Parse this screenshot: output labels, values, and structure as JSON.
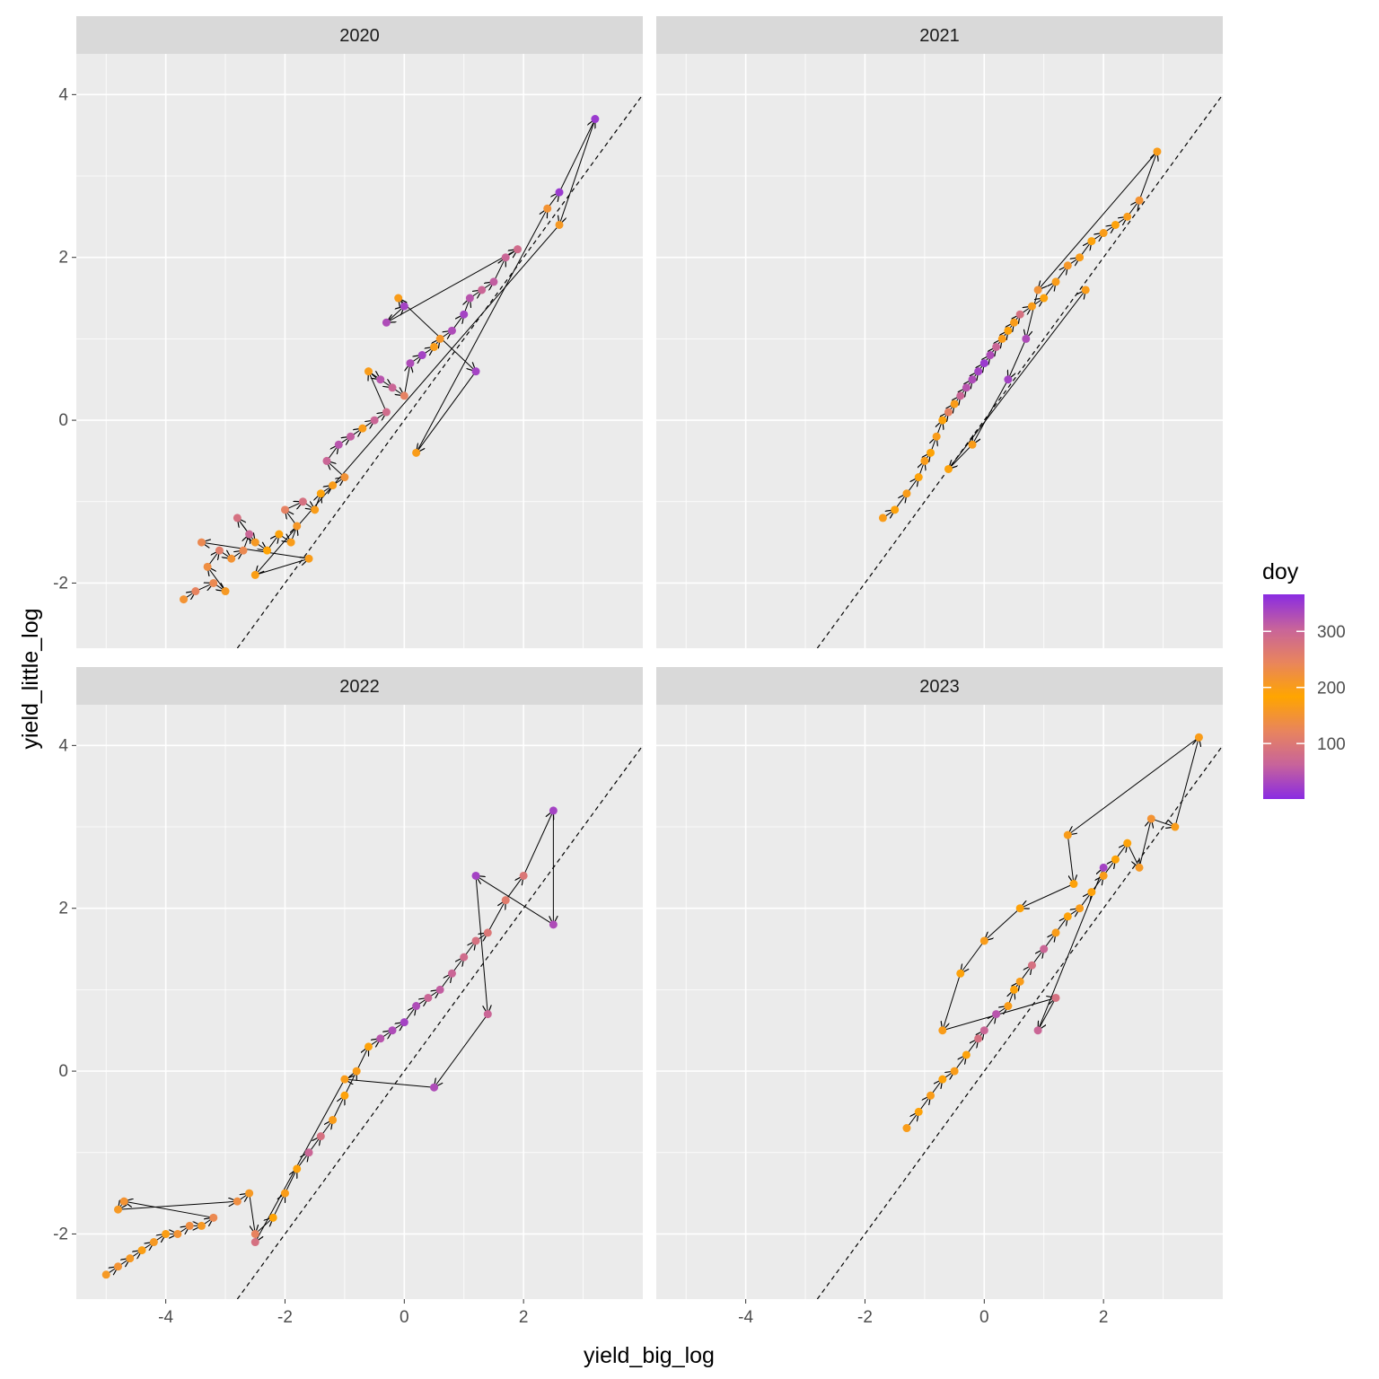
{
  "chart_data": {
    "type": "scatter",
    "xlabel": "yield_big_log",
    "ylabel": "yield_little_log",
    "xlim": [
      -5.5,
      4.0
    ],
    "ylim": [
      -2.8,
      4.5
    ],
    "x_ticks": [
      -4,
      -2,
      0,
      2
    ],
    "y_ticks": [
      -2,
      0,
      2,
      4
    ],
    "grid": true,
    "reference_line": {
      "slope": 1,
      "intercept": 0,
      "style": "dashed",
      "color": "#000000"
    },
    "color_scale": {
      "title": "doy",
      "min": 1,
      "max": 366,
      "breaks": [
        100,
        200,
        300
      ],
      "colors": [
        "#8a2be2",
        "#c8649a",
        "#e8845e",
        "#ffa500",
        "#e8845e",
        "#c8649a",
        "#8a2be2"
      ]
    },
    "legend_position": "right",
    "panels": [
      {
        "label": "2020",
        "points": [
          [
            -3.7,
            -2.2,
            150
          ],
          [
            -3.5,
            -2.1,
            120
          ],
          [
            -3.2,
            -2.0,
            130
          ],
          [
            -3.0,
            -2.1,
            160
          ],
          [
            -3.3,
            -1.8,
            140
          ],
          [
            -3.1,
            -1.6,
            110
          ],
          [
            -2.9,
            -1.7,
            150
          ],
          [
            -2.7,
            -1.6,
            130
          ],
          [
            -2.6,
            -1.4,
            300
          ],
          [
            -2.8,
            -1.2,
            280
          ],
          [
            -2.5,
            -1.5,
            160
          ],
          [
            -2.3,
            -1.6,
            180
          ],
          [
            -2.1,
            -1.4,
            190
          ],
          [
            -1.9,
            -1.5,
            200
          ],
          [
            -1.8,
            -1.3,
            210
          ],
          [
            -2.0,
            -1.1,
            250
          ],
          [
            -1.7,
            -1.0,
            280
          ],
          [
            -1.5,
            -1.1,
            200
          ],
          [
            -1.4,
            -0.9,
            190
          ],
          [
            -1.2,
            -0.8,
            200
          ],
          [
            -1.0,
            -0.7,
            220
          ],
          [
            -1.3,
            -0.5,
            300
          ],
          [
            -1.1,
            -0.3,
            320
          ],
          [
            -0.9,
            -0.2,
            310
          ],
          [
            -0.7,
            -0.1,
            200
          ],
          [
            -0.5,
            0.0,
            300
          ],
          [
            -0.3,
            0.1,
            290
          ],
          [
            -0.6,
            0.6,
            200
          ],
          [
            -0.4,
            0.5,
            320
          ],
          [
            -0.2,
            0.4,
            300
          ],
          [
            0.0,
            0.3,
            250
          ],
          [
            0.1,
            0.7,
            330
          ],
          [
            0.3,
            0.8,
            340
          ],
          [
            0.5,
            0.9,
            200
          ],
          [
            0.6,
            1.0,
            210
          ],
          [
            0.8,
            1.1,
            330
          ],
          [
            1.0,
            1.3,
            340
          ],
          [
            1.1,
            1.5,
            320
          ],
          [
            1.3,
            1.6,
            300
          ],
          [
            1.5,
            1.7,
            310
          ],
          [
            1.7,
            2.0,
            300
          ],
          [
            1.9,
            2.1,
            290
          ],
          [
            -0.3,
            1.2,
            330
          ],
          [
            0.0,
            1.4,
            340
          ],
          [
            -0.1,
            1.5,
            200
          ],
          [
            1.2,
            0.6,
            340
          ],
          [
            0.2,
            -0.4,
            200
          ],
          [
            2.4,
            2.6,
            150
          ],
          [
            2.6,
            2.8,
            350
          ],
          [
            3.2,
            3.7,
            350
          ],
          [
            2.6,
            2.4,
            160
          ],
          [
            -2.5,
            -1.9,
            170
          ],
          [
            -1.6,
            -1.7,
            200
          ],
          [
            -3.4,
            -1.5,
            130
          ]
        ]
      },
      {
        "label": "2021",
        "points": [
          [
            -1.7,
            -1.2,
            200
          ],
          [
            -1.5,
            -1.1,
            190
          ],
          [
            -1.3,
            -0.9,
            200
          ],
          [
            -1.1,
            -0.7,
            190
          ],
          [
            -1.0,
            -0.5,
            200
          ],
          [
            -0.9,
            -0.4,
            180
          ],
          [
            -0.8,
            -0.2,
            200
          ],
          [
            -0.7,
            0.0,
            190
          ],
          [
            -0.6,
            0.1,
            250
          ],
          [
            -0.5,
            0.2,
            200
          ],
          [
            -0.4,
            0.3,
            300
          ],
          [
            -0.3,
            0.4,
            320
          ],
          [
            -0.2,
            0.5,
            330
          ],
          [
            -0.1,
            0.6,
            340
          ],
          [
            0.0,
            0.7,
            350
          ],
          [
            0.1,
            0.8,
            330
          ],
          [
            0.2,
            0.9,
            300
          ],
          [
            0.3,
            1.0,
            200
          ],
          [
            0.4,
            1.1,
            190
          ],
          [
            0.5,
            1.2,
            200
          ],
          [
            0.6,
            1.3,
            280
          ],
          [
            0.8,
            1.4,
            200
          ],
          [
            1.0,
            1.5,
            190
          ],
          [
            1.2,
            1.7,
            200
          ],
          [
            1.4,
            1.9,
            210
          ],
          [
            1.6,
            2.0,
            200
          ],
          [
            1.8,
            2.2,
            190
          ],
          [
            2.0,
            2.3,
            200
          ],
          [
            2.2,
            2.4,
            190
          ],
          [
            2.4,
            2.5,
            200
          ],
          [
            2.6,
            2.7,
            150
          ],
          [
            2.9,
            3.3,
            200
          ],
          [
            0.9,
            1.6,
            220
          ],
          [
            0.7,
            1.0,
            330
          ],
          [
            0.4,
            0.5,
            340
          ],
          [
            -0.2,
            -0.3,
            200
          ],
          [
            -0.6,
            -0.6,
            190
          ],
          [
            1.7,
            1.6,
            200
          ]
        ]
      },
      {
        "label": "2022",
        "points": [
          [
            -5.0,
            -2.5,
            160
          ],
          [
            -4.8,
            -2.4,
            150
          ],
          [
            -4.6,
            -2.3,
            160
          ],
          [
            -4.4,
            -2.2,
            170
          ],
          [
            -4.2,
            -2.1,
            160
          ],
          [
            -4.0,
            -2.0,
            170
          ],
          [
            -3.8,
            -2.0,
            150
          ],
          [
            -3.6,
            -1.9,
            140
          ],
          [
            -3.4,
            -1.9,
            160
          ],
          [
            -3.2,
            -1.8,
            130
          ],
          [
            -4.7,
            -1.6,
            150
          ],
          [
            -4.8,
            -1.7,
            160
          ],
          [
            -2.8,
            -1.6,
            140
          ],
          [
            -2.6,
            -1.5,
            160
          ],
          [
            -2.5,
            -2.0,
            120
          ],
          [
            -2.2,
            -1.8,
            180
          ],
          [
            -2.0,
            -1.5,
            200
          ],
          [
            -1.8,
            -1.2,
            190
          ],
          [
            -1.6,
            -1.0,
            300
          ],
          [
            -1.4,
            -0.8,
            280
          ],
          [
            -1.2,
            -0.6,
            200
          ],
          [
            -1.0,
            -0.3,
            190
          ],
          [
            -0.8,
            0.0,
            200
          ],
          [
            -0.6,
            0.3,
            190
          ],
          [
            -0.4,
            0.4,
            320
          ],
          [
            -0.2,
            0.5,
            330
          ],
          [
            0.0,
            0.6,
            340
          ],
          [
            0.2,
            0.8,
            330
          ],
          [
            0.4,
            0.9,
            300
          ],
          [
            0.6,
            1.0,
            310
          ],
          [
            0.8,
            1.2,
            300
          ],
          [
            1.0,
            1.4,
            290
          ],
          [
            1.2,
            1.6,
            280
          ],
          [
            1.4,
            1.7,
            270
          ],
          [
            1.7,
            2.1,
            260
          ],
          [
            2.0,
            2.4,
            270
          ],
          [
            2.5,
            3.2,
            340
          ],
          [
            2.5,
            1.8,
            330
          ],
          [
            1.2,
            2.4,
            340
          ],
          [
            1.4,
            0.7,
            300
          ],
          [
            0.5,
            -0.2,
            330
          ],
          [
            -1.0,
            -0.1,
            200
          ],
          [
            -2.5,
            -2.1,
            280
          ]
        ]
      },
      {
        "label": "2023",
        "points": [
          [
            -1.3,
            -0.7,
            200
          ],
          [
            -1.1,
            -0.5,
            190
          ],
          [
            -0.9,
            -0.3,
            200
          ],
          [
            -0.7,
            -0.1,
            190
          ],
          [
            -0.5,
            0.0,
            200
          ],
          [
            -0.3,
            0.2,
            190
          ],
          [
            -0.1,
            0.4,
            280
          ],
          [
            0.0,
            0.5,
            300
          ],
          [
            0.2,
            0.7,
            320
          ],
          [
            0.4,
            0.8,
            200
          ],
          [
            0.5,
            1.0,
            190
          ],
          [
            0.6,
            1.1,
            200
          ],
          [
            0.8,
            1.3,
            280
          ],
          [
            1.0,
            1.5,
            300
          ],
          [
            1.2,
            1.7,
            200
          ],
          [
            1.4,
            1.9,
            190
          ],
          [
            1.6,
            2.0,
            200
          ],
          [
            1.8,
            2.2,
            190
          ],
          [
            2.0,
            2.4,
            200
          ],
          [
            2.2,
            2.6,
            180
          ],
          [
            2.4,
            2.8,
            190
          ],
          [
            2.6,
            2.5,
            160
          ],
          [
            2.8,
            3.1,
            150
          ],
          [
            3.2,
            3.0,
            200
          ],
          [
            3.6,
            4.1,
            200
          ],
          [
            1.4,
            2.9,
            200
          ],
          [
            1.5,
            2.3,
            190
          ],
          [
            0.6,
            2.0,
            190
          ],
          [
            0.0,
            1.6,
            200
          ],
          [
            -0.4,
            1.2,
            190
          ],
          [
            -0.7,
            0.5,
            200
          ],
          [
            1.2,
            0.9,
            280
          ],
          [
            0.9,
            0.5,
            300
          ],
          [
            2.0,
            2.5,
            340
          ]
        ]
      }
    ]
  }
}
